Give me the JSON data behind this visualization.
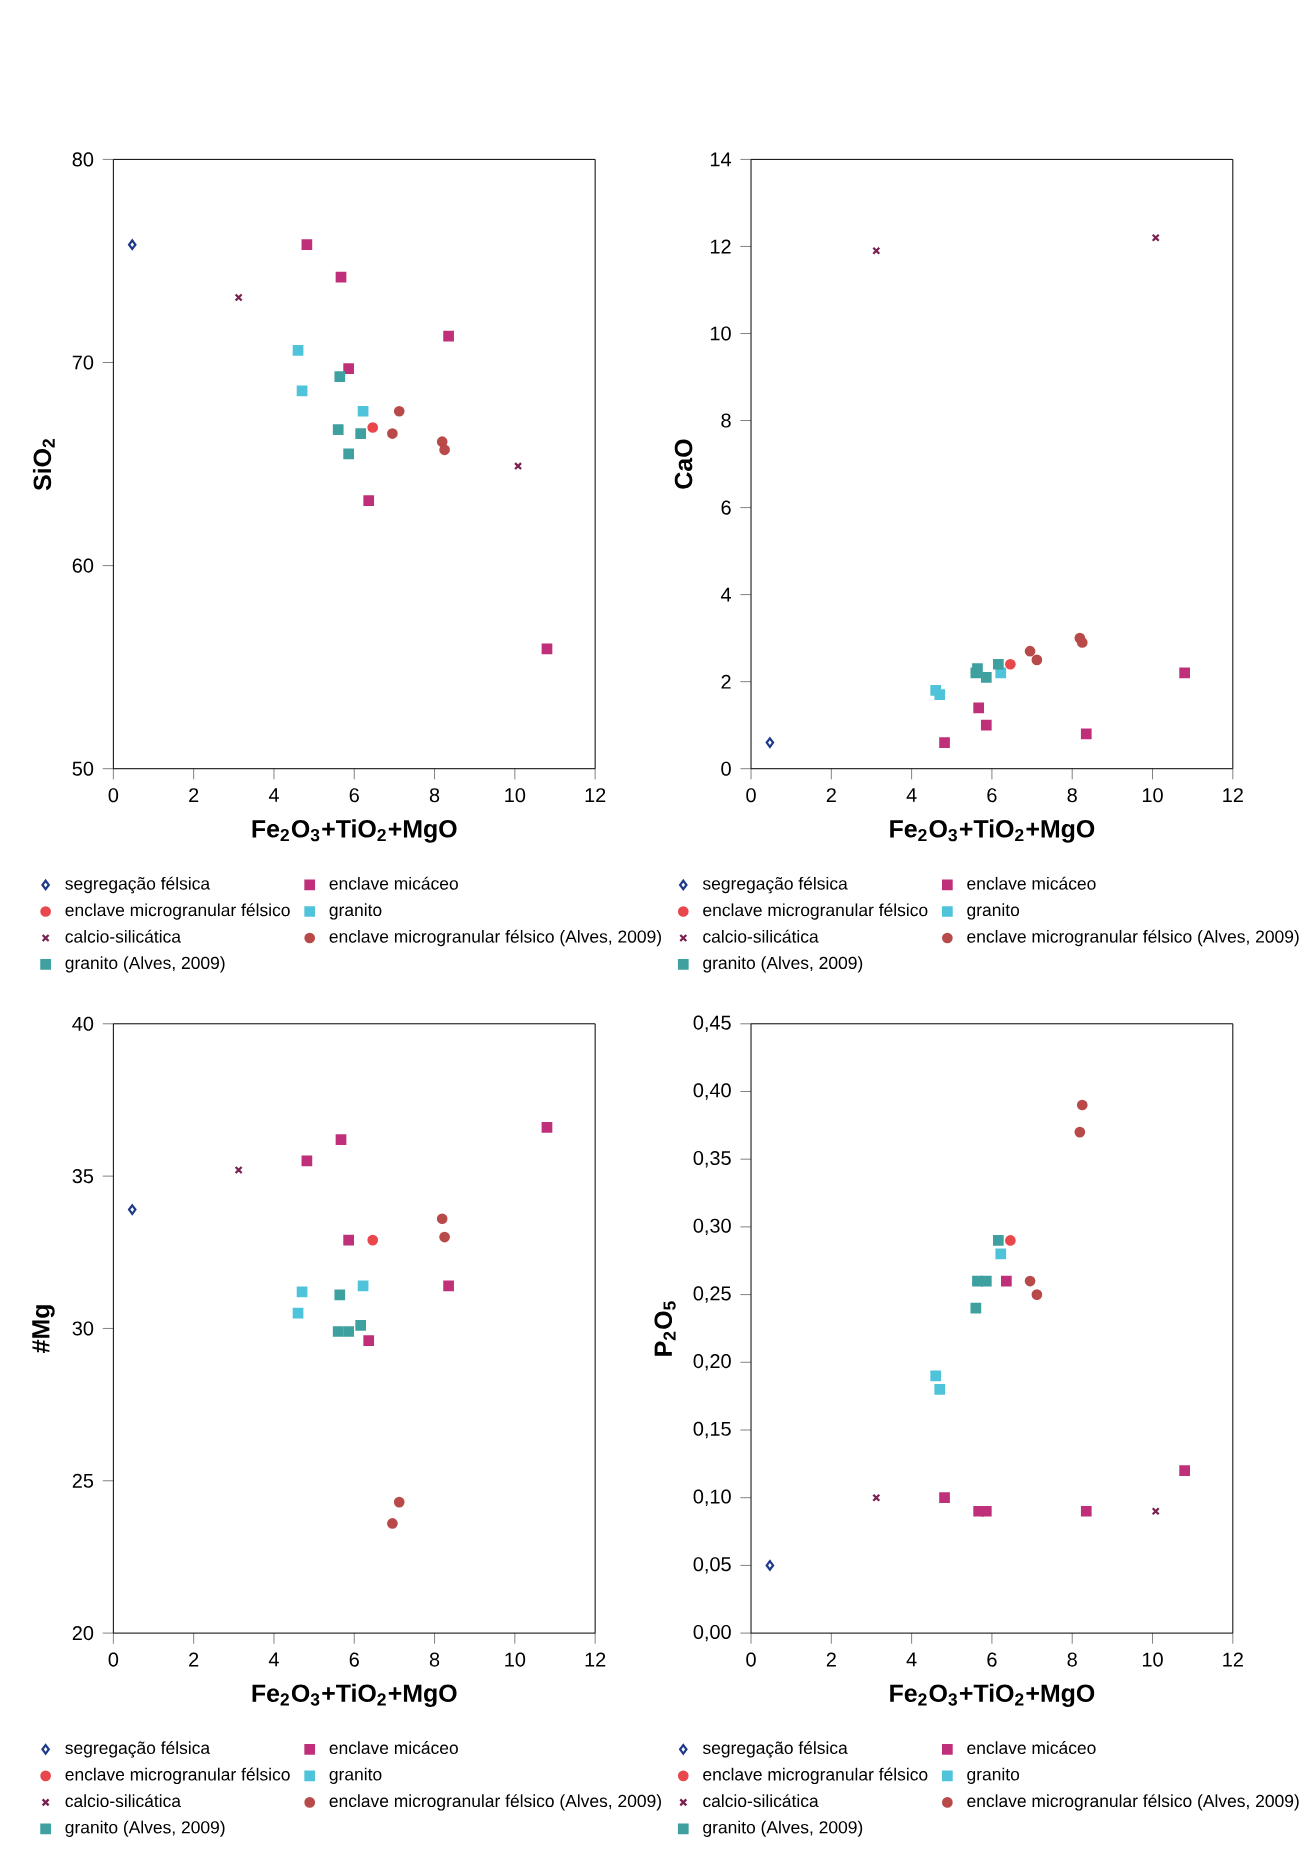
{
  "chart_data": [
    {
      "type": "scatter",
      "xlabel": "Fe$_{2}$O$_{3}$+TiO$_{2}$+MgO",
      "ylabel": "SiO$_{2}$",
      "xlim": [
        0,
        12
      ],
      "xticks": [
        0,
        2,
        4,
        6,
        8,
        10,
        12
      ],
      "ylim": [
        50,
        80
      ],
      "yticks": [
        50,
        60,
        70,
        80
      ],
      "legend": "bottom",
      "series": [
        {
          "name": "segregação félsica",
          "color": "#1f3a8a",
          "marker": "diamond",
          "x": [
            0.47
          ],
          "values": [
            75.8
          ]
        },
        {
          "name": "enclave micáceo",
          "color": "#c0307a",
          "marker": "square",
          "x": [
            4.82,
            5.67,
            5.86,
            6.36,
            8.35,
            10.8
          ],
          "values": [
            75.8,
            74.2,
            69.7,
            63.2,
            71.3,
            55.9
          ]
        },
        {
          "name": "enclave microgranular félsico",
          "color": "#e8474c",
          "marker": "circle",
          "x": [
            6.46
          ],
          "values": [
            66.8
          ]
        },
        {
          "name": "granito",
          "color": "#4fc3d9",
          "marker": "square",
          "x": [
            4.6,
            4.7,
            6.22
          ],
          "values": [
            70.6,
            68.6,
            67.6
          ]
        },
        {
          "name": "calcio-silicática",
          "color": "#7a2050",
          "marker": "cross",
          "x": [
            3.12,
            10.08
          ],
          "values": [
            73.2,
            64.9
          ]
        },
        {
          "name": "enclave microgranular félsico (Alves, 2009)",
          "color": "#b94a4a",
          "marker": "circle",
          "x": [
            6.95,
            7.12,
            8.19,
            8.25
          ],
          "values": [
            66.5,
            67.6,
            66.1,
            65.7
          ]
        },
        {
          "name": "granito (Alves, 2009)",
          "color": "#3fa0a0",
          "marker": "square",
          "x": [
            5.64,
            6.16,
            5.6,
            5.86
          ],
          "values": [
            69.3,
            66.5,
            66.7,
            65.5
          ]
        }
      ]
    },
    {
      "type": "scatter",
      "xlabel": "Fe$_{2}$O$_{3}$+TiO$_{2}$+MgO",
      "ylabel": "CaO",
      "xlim": [
        0,
        12
      ],
      "xticks": [
        0,
        2,
        4,
        6,
        8,
        10,
        12
      ],
      "ylim": [
        0,
        14
      ],
      "yticks": [
        0,
        2,
        4,
        6,
        8,
        10,
        12,
        14
      ],
      "legend": "bottom",
      "series": [
        {
          "name": "segregação félsica",
          "color": "#1f3a8a",
          "marker": "diamond",
          "x": [
            0.47
          ],
          "values": [
            0.6
          ]
        },
        {
          "name": "enclave micáceo",
          "color": "#c0307a",
          "marker": "square",
          "x": [
            4.82,
            5.67,
            5.86,
            8.35,
            10.8
          ],
          "values": [
            0.6,
            1.4,
            1.0,
            0.8,
            2.2
          ]
        },
        {
          "name": "enclave microgranular félsico",
          "color": "#e8474c",
          "marker": "circle",
          "x": [
            6.46
          ],
          "values": [
            2.4
          ]
        },
        {
          "name": "granito",
          "color": "#4fc3d9",
          "marker": "square",
          "x": [
            4.6,
            4.7,
            6.22
          ],
          "values": [
            1.8,
            1.7,
            2.2
          ]
        },
        {
          "name": "calcio-silicática",
          "color": "#7a2050",
          "marker": "cross",
          "x": [
            3.12,
            10.08
          ],
          "values": [
            11.9,
            12.2
          ]
        },
        {
          "name": "enclave microgranular félsico (Alves, 2009)",
          "color": "#b94a4a",
          "marker": "circle",
          "x": [
            6.95,
            7.12,
            8.19,
            8.25
          ],
          "values": [
            2.7,
            2.5,
            3.0,
            2.9
          ]
        },
        {
          "name": "granito (Alves, 2009)",
          "color": "#3fa0a0",
          "marker": "square",
          "x": [
            5.64,
            6.16,
            5.6,
            5.86
          ],
          "values": [
            2.3,
            2.4,
            2.2,
            2.1
          ]
        }
      ]
    },
    {
      "type": "scatter",
      "xlabel": "Fe$_{2}$O$_{3}$+TiO$_{2}$+MgO",
      "ylabel": "#Mg",
      "xlim": [
        0,
        12
      ],
      "xticks": [
        0,
        2,
        4,
        6,
        8,
        10,
        12
      ],
      "ylim": [
        20,
        40
      ],
      "yticks": [
        20,
        25,
        30,
        35,
        40
      ],
      "legend": "bottom",
      "series": [
        {
          "name": "segregação félsica",
          "color": "#1f3a8a",
          "marker": "diamond",
          "x": [
            0.47
          ],
          "values": [
            33.9
          ]
        },
        {
          "name": "enclave micáceo",
          "color": "#c0307a",
          "marker": "square",
          "x": [
            4.82,
            5.67,
            5.86,
            6.36,
            8.35,
            10.8
          ],
          "values": [
            35.5,
            36.2,
            32.9,
            29.6,
            31.4,
            36.6
          ]
        },
        {
          "name": "enclave microgranular félsico",
          "color": "#e8474c",
          "marker": "circle",
          "x": [
            6.46
          ],
          "values": [
            32.9
          ]
        },
        {
          "name": "granito",
          "color": "#4fc3d9",
          "marker": "square",
          "x": [
            4.6,
            4.7,
            6.22
          ],
          "values": [
            30.5,
            31.2,
            31.4
          ]
        },
        {
          "name": "calcio-silicática",
          "color": "#7a2050",
          "marker": "cross",
          "x": [
            3.12
          ],
          "values": [
            35.2
          ]
        },
        {
          "name": "enclave microgranular félsico (Alves, 2009)",
          "color": "#b94a4a",
          "marker": "circle",
          "x": [
            6.95,
            7.12,
            8.19,
            8.25
          ],
          "values": [
            23.6,
            24.3,
            33.6,
            33.0
          ]
        },
        {
          "name": "granito (Alves, 2009)",
          "color": "#3fa0a0",
          "marker": "square",
          "x": [
            5.64,
            6.16,
            5.6,
            5.86
          ],
          "values": [
            31.1,
            30.1,
            29.9,
            29.9
          ]
        }
      ]
    },
    {
      "type": "scatter",
      "xlabel": "Fe$_{2}$O$_{3}$+TiO$_{2}$+MgO",
      "ylabel": "P$_{2}$O$_{5}$",
      "xlim": [
        0,
        12
      ],
      "xticks": [
        0,
        2,
        4,
        6,
        8,
        10,
        12
      ],
      "ylim": [
        0,
        0.45
      ],
      "yticks": [
        {
          "value": 0,
          "label": "0,00"
        },
        {
          "value": 0.05,
          "label": "0,05"
        },
        {
          "value": 0.1,
          "label": "0,10"
        },
        {
          "value": 0.15,
          "label": "0,15"
        },
        {
          "value": 0.2,
          "label": "0,20"
        },
        {
          "value": 0.25,
          "label": "0,25"
        },
        {
          "value": 0.3,
          "label": "0,30"
        },
        {
          "value": 0.35,
          "label": "0,35"
        },
        {
          "value": 0.4,
          "label": "0,40"
        },
        {
          "value": 0.45,
          "label": "0,45"
        }
      ],
      "legend": "bottom",
      "series": [
        {
          "name": "segregação félsica",
          "color": "#1f3a8a",
          "marker": "diamond",
          "x": [
            0.47
          ],
          "values": [
            0.05
          ]
        },
        {
          "name": "enclave micáceo",
          "color": "#c0307a",
          "marker": "square",
          "x": [
            4.82,
            5.67,
            5.86,
            6.36,
            8.35,
            10.8
          ],
          "values": [
            0.1,
            0.09,
            0.09,
            0.26,
            0.09,
            0.12
          ]
        },
        {
          "name": "enclave microgranular félsico",
          "color": "#e8474c",
          "marker": "circle",
          "x": [
            6.46
          ],
          "values": [
            0.29
          ]
        },
        {
          "name": "granito",
          "color": "#4fc3d9",
          "marker": "square",
          "x": [
            4.6,
            4.7,
            6.22
          ],
          "values": [
            0.19,
            0.18,
            0.28
          ]
        },
        {
          "name": "calcio-silicática",
          "color": "#7a2050",
          "marker": "cross",
          "x": [
            3.12,
            10.08
          ],
          "values": [
            0.1,
            0.09
          ]
        },
        {
          "name": "enclave microgranular félsico (Alves, 2009)",
          "color": "#b94a4a",
          "marker": "circle",
          "x": [
            6.95,
            7.12,
            8.19,
            8.25
          ],
          "values": [
            0.26,
            0.25,
            0.37,
            0.39
          ]
        },
        {
          "name": "granito (Alves, 2009)",
          "color": "#3fa0a0",
          "marker": "square",
          "x": [
            5.64,
            6.16,
            5.6,
            5.86
          ],
          "values": [
            0.26,
            0.29,
            0.24,
            0.26
          ]
        }
      ]
    }
  ]
}
